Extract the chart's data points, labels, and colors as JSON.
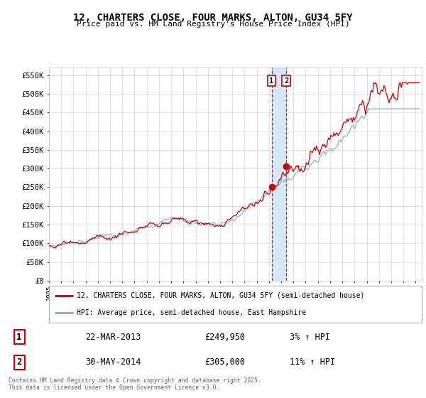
{
  "title": "12, CHARTERS CLOSE, FOUR MARKS, ALTON, GU34 5FY",
  "subtitle": "Price paid vs. HM Land Registry's House Price Index (HPI)",
  "ylabel_vals": [
    0,
    50000,
    100000,
    150000,
    200000,
    250000,
    300000,
    350000,
    400000,
    450000,
    500000,
    550000
  ],
  "ylabel_labels": [
    "£0",
    "£50K",
    "£100K",
    "£150K",
    "£200K",
    "£250K",
    "£300K",
    "£350K",
    "£400K",
    "£450K",
    "£500K",
    "£550K"
  ],
  "ylim": [
    0,
    570000
  ],
  "xlim_start": 1995.0,
  "xlim_end": 2025.5,
  "sale1_date": 2013.22,
  "sale1_price": 249950,
  "sale1_label": "1",
  "sale2_date": 2014.41,
  "sale2_price": 305000,
  "sale2_label": "2",
  "legend_line1": "12, CHARTERS CLOSE, FOUR MARKS, ALTON, GU34 5FY (semi-detached house)",
  "legend_line2": "HPI: Average price, semi-detached house, East Hampshire",
  "table_row1": [
    "1",
    "22-MAR-2013",
    "£249,950",
    "3% ↑ HPI"
  ],
  "table_row2": [
    "2",
    "30-MAY-2014",
    "£305,000",
    "11% ↑ HPI"
  ],
  "footer": "Contains HM Land Registry data © Crown copyright and database right 2025.\nThis data is licensed under the Open Government Licence v3.0.",
  "line_color_property": "#cc0000",
  "line_color_hpi": "#7aadcf",
  "background_color": "#ffffff",
  "grid_color": "#d8d8d8",
  "highlight_box_color": "#d6e8f5"
}
